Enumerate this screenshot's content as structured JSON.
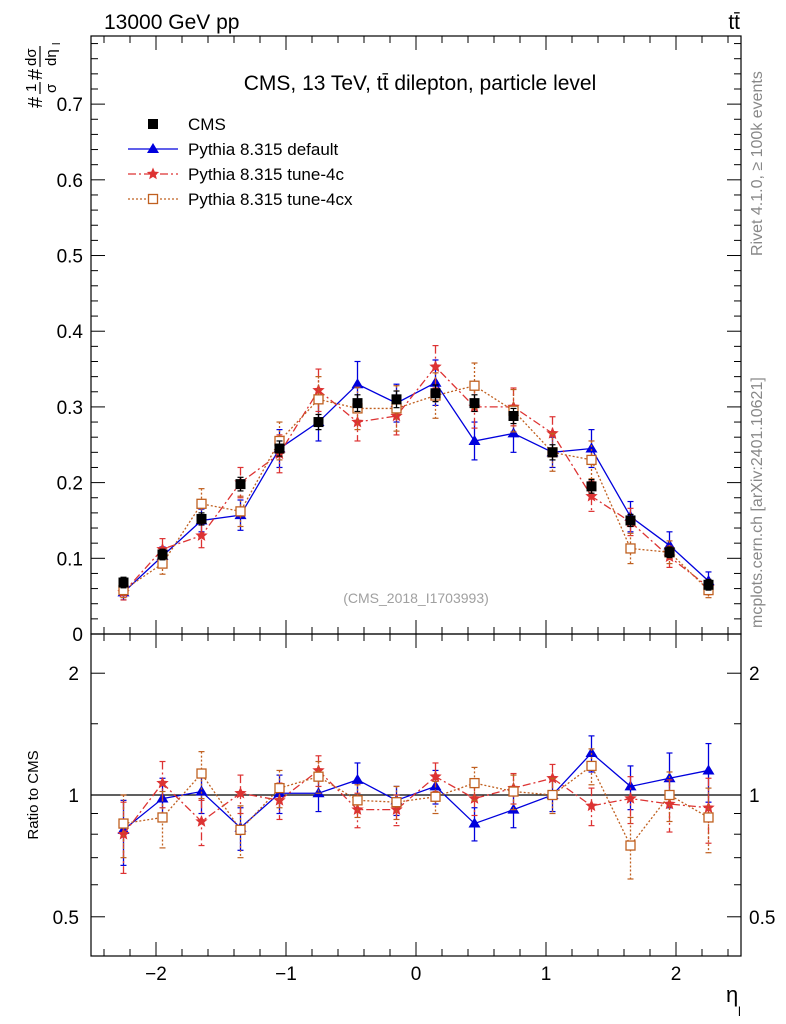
{
  "header": {
    "energy_label": "13000 GeV pp",
    "process_label": "tt̄",
    "title": "CMS, 13 TeV, tt̄ dilepton, particle level",
    "watermark": "(CMS_2018_I1703993)",
    "side_right_top": "Rivet 4.1.0, ≥ 100k events",
    "side_right_bottom": "mcplots.cern.ch [arXiv:2401.10621]"
  },
  "chart_data": [
    {
      "type": "scatter",
      "panel": "main",
      "ylabel": "1/σ dσ/dη_l",
      "ylabel_parts": {
        "num": "1",
        "den": "σ",
        "frac_num": "dσ",
        "frac_den": "dη",
        "sub": "l"
      },
      "xlabel": "η_l",
      "xlabel_parts": {
        "base": "η",
        "sub": "l"
      },
      "xlim": [
        -2.5,
        2.5
      ],
      "ylim": [
        0,
        0.79
      ],
      "x_ticks": [
        -2,
        -1,
        0,
        1,
        2
      ],
      "x_tick_labels": [
        "−2",
        "−1",
        "0",
        "1",
        "2"
      ],
      "y_ticks": [
        0,
        0.1,
        0.2,
        0.3,
        0.4,
        0.5,
        0.6,
        0.7
      ],
      "y_tick_labels": [
        "0",
        "0.1",
        "0.2",
        "0.3",
        "0.4",
        "0.5",
        "0.6",
        "0.7"
      ],
      "x": [
        -2.25,
        -1.95,
        -1.65,
        -1.35,
        -1.05,
        -0.75,
        -0.45,
        -0.15,
        0.15,
        0.45,
        0.75,
        1.05,
        1.35,
        1.65,
        1.95,
        2.25
      ],
      "legend_position": "top-left",
      "series": [
        {
          "name": "CMS",
          "color": "#000000",
          "marker": "square-filled",
          "line": "none",
          "values": [
            0.068,
            0.105,
            0.152,
            0.198,
            0.245,
            0.28,
            0.305,
            0.31,
            0.318,
            0.305,
            0.288,
            0.24,
            0.195,
            0.15,
            0.108,
            0.065
          ],
          "errors": [
            0.007,
            0.007,
            0.008,
            0.009,
            0.01,
            0.01,
            0.011,
            0.011,
            0.011,
            0.011,
            0.01,
            0.01,
            0.009,
            0.008,
            0.007,
            0.007
          ]
        },
        {
          "name": "Pythia 8.315 default",
          "color": "#0000dd",
          "marker": "triangle-filled",
          "line": "solid",
          "values": [
            0.055,
            0.103,
            0.15,
            0.157,
            0.245,
            0.28,
            0.33,
            0.305,
            0.332,
            0.255,
            0.265,
            0.24,
            0.245,
            0.155,
            0.117,
            0.07
          ],
          "errors": [
            0.01,
            0.012,
            0.015,
            0.02,
            0.025,
            0.025,
            0.03,
            0.025,
            0.03,
            0.025,
            0.025,
            0.02,
            0.025,
            0.02,
            0.018,
            0.012
          ]
        },
        {
          "name": "Pythia 8.315 tune-4c",
          "color": "#dd3333",
          "marker": "star",
          "line": "dashdot",
          "values": [
            0.055,
            0.112,
            0.13,
            0.2,
            0.238,
            0.322,
            0.28,
            0.288,
            0.353,
            0.3,
            0.3,
            0.265,
            0.182,
            0.148,
            0.102,
            0.062
          ],
          "errors": [
            0.01,
            0.014,
            0.016,
            0.02,
            0.025,
            0.028,
            0.025,
            0.025,
            0.028,
            0.028,
            0.025,
            0.022,
            0.02,
            0.018,
            0.014,
            0.01
          ]
        },
        {
          "name": "Pythia 8.315 tune-4cx",
          "color": "#c06020",
          "marker": "square-open",
          "line": "dotted",
          "values": [
            0.058,
            0.093,
            0.172,
            0.162,
            0.255,
            0.31,
            0.298,
            0.298,
            0.315,
            0.328,
            0.295,
            0.24,
            0.23,
            0.113,
            0.108,
            0.058
          ],
          "errors": [
            0.01,
            0.014,
            0.02,
            0.02,
            0.025,
            0.03,
            0.028,
            0.03,
            0.03,
            0.03,
            0.028,
            0.025,
            0.025,
            0.02,
            0.015,
            0.01
          ]
        }
      ]
    },
    {
      "type": "scatter",
      "panel": "ratio",
      "ylabel": "Ratio to CMS",
      "xlabel": "η_l",
      "xlim": [
        -2.5,
        2.5
      ],
      "ylim": [
        0.4,
        2.5
      ],
      "y_scale": "log",
      "y_ticks": [
        0.5,
        1,
        2
      ],
      "y_tick_labels": [
        "0.5",
        "1",
        "2"
      ],
      "x": [
        -2.25,
        -1.95,
        -1.65,
        -1.35,
        -1.05,
        -0.75,
        -0.45,
        -0.15,
        0.15,
        0.45,
        0.75,
        1.05,
        1.35,
        1.65,
        1.95,
        2.25
      ],
      "series": [
        {
          "name": "Pythia 8.315 default",
          "color": "#0000dd",
          "marker": "triangle-filled",
          "line": "solid",
          "values": [
            0.82,
            0.98,
            1.02,
            0.83,
            1.01,
            1.01,
            1.09,
            0.97,
            1.05,
            0.85,
            0.92,
            1.0,
            1.27,
            1.05,
            1.1,
            1.15
          ],
          "errors": [
            0.15,
            0.12,
            0.12,
            0.1,
            0.11,
            0.1,
            0.11,
            0.08,
            0.1,
            0.08,
            0.09,
            0.09,
            0.13,
            0.13,
            0.17,
            0.19
          ]
        },
        {
          "name": "Pythia 8.315 tune-4c",
          "color": "#dd3333",
          "marker": "star",
          "line": "dashdot",
          "values": [
            0.8,
            1.07,
            0.86,
            1.01,
            0.97,
            1.15,
            0.92,
            0.92,
            1.11,
            0.98,
            1.04,
            1.1,
            0.94,
            0.98,
            0.95,
            0.93
          ],
          "errors": [
            0.16,
            0.14,
            0.11,
            0.11,
            0.1,
            0.1,
            0.09,
            0.08,
            0.09,
            0.09,
            0.09,
            0.09,
            0.1,
            0.13,
            0.14,
            0.17
          ]
        },
        {
          "name": "Pythia 8.315 tune-4cx",
          "color": "#c06020",
          "marker": "square-open",
          "line": "dotted",
          "values": [
            0.85,
            0.88,
            1.13,
            0.82,
            1.04,
            1.11,
            0.97,
            0.96,
            0.99,
            1.07,
            1.02,
            1.0,
            1.18,
            0.75,
            1.0,
            0.88
          ],
          "errors": [
            0.15,
            0.14,
            0.15,
            0.12,
            0.11,
            0.1,
            0.09,
            0.09,
            0.09,
            0.1,
            0.1,
            0.1,
            0.12,
            0.13,
            0.14,
            0.16
          ]
        }
      ]
    }
  ]
}
